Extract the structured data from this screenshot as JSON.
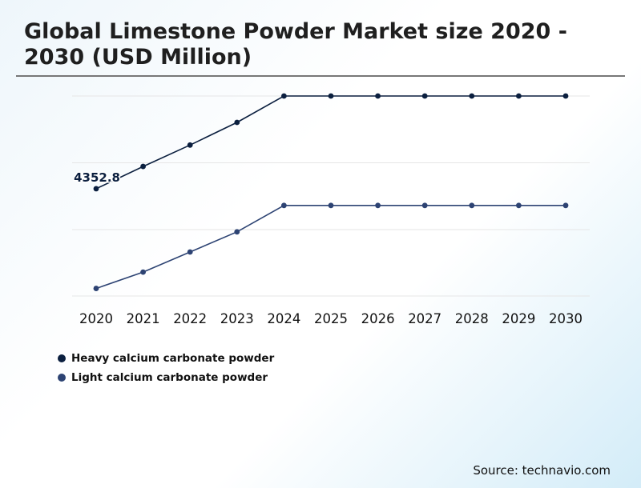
{
  "title": "Global Limestone Powder Market size 2020 - 2030 (USD Million)",
  "source": "Source: technavio.com",
  "colors": {
    "heavy": "#0b1f3f",
    "light": "#2d4373",
    "grid": "#e6e6e6"
  },
  "chart_data": {
    "type": "line",
    "title": "Global Limestone Powder Market size 2020 - 2030 (USD Million)",
    "x": [
      "2020",
      "2021",
      "2022",
      "2023",
      "2024",
      "2025",
      "2026",
      "2027",
      "2028",
      "2029",
      "2030"
    ],
    "series": [
      {
        "name": "Heavy calcium carbonate powder",
        "values": [
          4352.8,
          4530,
          4700,
          4880,
          5090,
          5090,
          5090,
          5090,
          5090,
          5090,
          5090
        ],
        "data_labels": [
          "4352.8",
          "",
          "",
          "",
          "",
          "",
          "",
          "",
          "",
          "",
          ""
        ]
      },
      {
        "name": "Light calcium carbonate powder",
        "values": [
          3560,
          3690,
          3850,
          4010,
          4220,
          4220,
          4220,
          4220,
          4220,
          4220,
          4220
        ],
        "data_labels": [
          "",
          "",
          "",
          "",
          "",
          "",
          "",
          "",
          "",
          "",
          ""
        ]
      }
    ],
    "ylim": [
      3500,
      5090
    ],
    "grid": true,
    "y_axis_labels_visible": false,
    "legend_position": "bottom-left"
  }
}
